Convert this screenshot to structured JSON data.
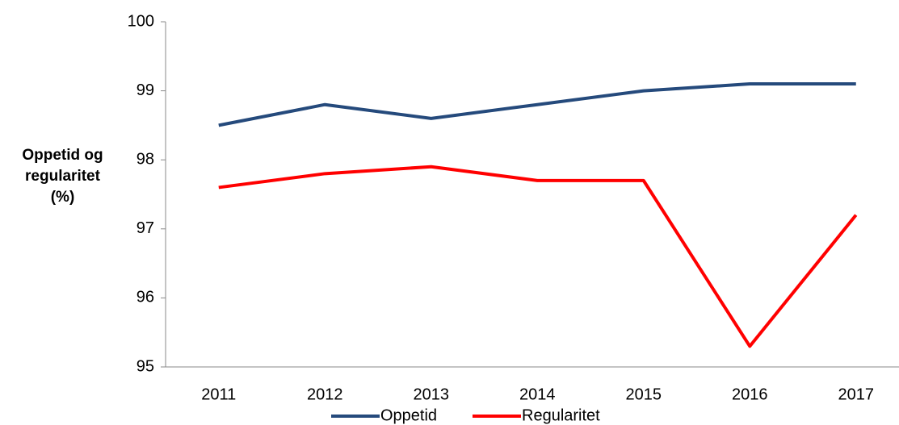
{
  "chart_data": {
    "type": "line",
    "ylabel": "Oppetid og regularitet (%)",
    "categories": [
      "2011",
      "2012",
      "2013",
      "2014",
      "2015",
      "2016",
      "2017"
    ],
    "series": [
      {
        "name": "Oppetid",
        "color": "#254a7c",
        "values": [
          98.5,
          98.8,
          98.6,
          98.8,
          99.0,
          99.1,
          99.1
        ]
      },
      {
        "name": "Regularitet",
        "color": "#ff0000",
        "values": [
          97.6,
          97.8,
          97.9,
          97.7,
          97.7,
          95.3,
          97.2
        ]
      }
    ],
    "ylim": [
      95,
      100
    ],
    "yticks": [
      95,
      96,
      97,
      98,
      99,
      100
    ],
    "grid": false,
    "legend": "bottom"
  }
}
